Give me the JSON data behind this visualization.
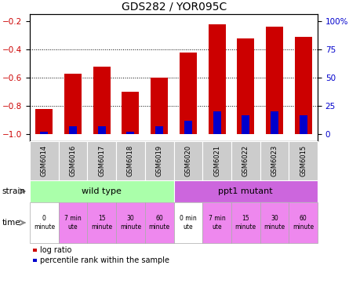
{
  "title": "GDS282 / YOR095C",
  "samples": [
    "GSM6014",
    "GSM6016",
    "GSM6017",
    "GSM6018",
    "GSM6019",
    "GSM6020",
    "GSM6021",
    "GSM6022",
    "GSM6023",
    "GSM6015"
  ],
  "log_ratio": [
    -0.82,
    -0.57,
    -0.52,
    -0.7,
    -0.6,
    -0.42,
    -0.22,
    -0.32,
    -0.24,
    -0.31
  ],
  "percentile_pct": [
    2,
    7,
    7,
    2,
    7,
    12,
    20,
    17,
    20,
    17
  ],
  "ylim": [
    -1.05,
    -0.15
  ],
  "yticks_left": [
    -1.0,
    -0.8,
    -0.6,
    -0.4,
    -0.2
  ],
  "yticks_right_pct": [
    0,
    25,
    50,
    75,
    100
  ],
  "bar_color_red": "#cc0000",
  "bar_color_blue": "#0000cc",
  "strain_wt_color": "#aaffaa",
  "strain_mut_color": "#cc66dd",
  "time_color_white": "#ffffff",
  "time_color_pink": "#ee88ee",
  "strain_labels": [
    "wild type",
    "ppt1 mutant"
  ],
  "time_labels_line1": [
    "0",
    "7 min",
    "15",
    "30",
    "60",
    "0 min",
    "7 min",
    "15",
    "30",
    "60"
  ],
  "time_labels_line2": [
    "minute",
    "ute",
    "minute",
    "minute",
    "minute",
    "ute",
    "ute",
    "minute",
    "minute",
    "minute"
  ],
  "time_colors": [
    "#ffffff",
    "#ee88ee",
    "#ee88ee",
    "#ee88ee",
    "#ee88ee",
    "#ffffff",
    "#ee88ee",
    "#ee88ee",
    "#ee88ee",
    "#ee88ee"
  ],
  "legend_red_label": "log ratio",
  "legend_blue_label": "percentile rank within the sample",
  "tick_label_color_left": "#cc0000",
  "tick_label_color_right": "#0000cc",
  "sample_box_color": "#cccccc",
  "n_wt": 5,
  "n_mut": 5
}
